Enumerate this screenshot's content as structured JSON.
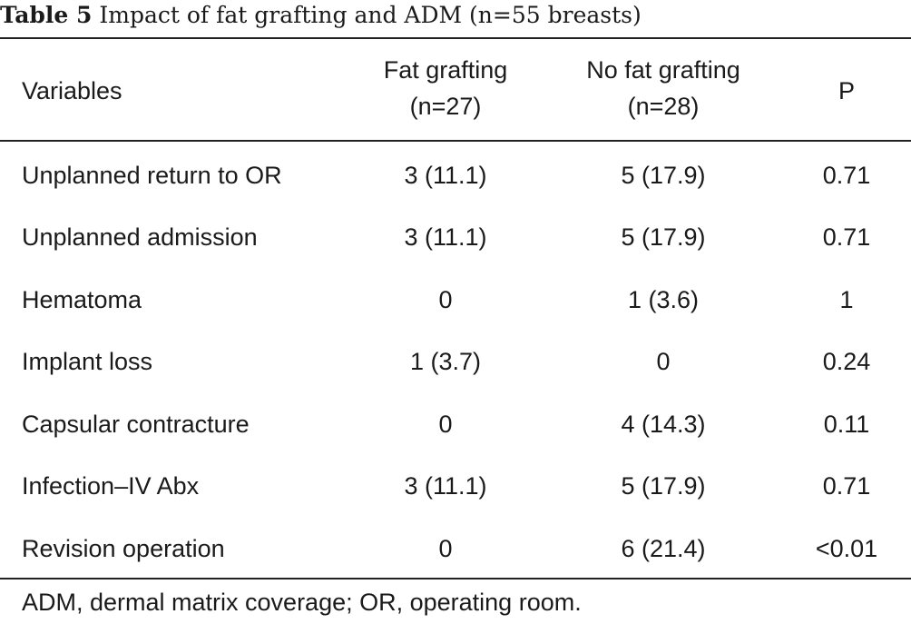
{
  "caption": {
    "label": "Table 5",
    "text": "Impact of fat grafting and ADM (n=55 breasts)"
  },
  "table": {
    "headers": {
      "variables": "Variables",
      "fat_grafting": {
        "line1": "Fat grafting",
        "line2": "(n=27)"
      },
      "no_fat_grafting": {
        "line1": "No fat grafting",
        "line2": "(n=28)"
      },
      "p": "P"
    },
    "rows": [
      {
        "variable": "Unplanned return to OR",
        "fat_grafting": "3 (11.1)",
        "no_fat_grafting": "5 (17.9)",
        "p": "0.71"
      },
      {
        "variable": "Unplanned admission",
        "fat_grafting": "3 (11.1)",
        "no_fat_grafting": "5 (17.9)",
        "p": "0.71"
      },
      {
        "variable": "Hematoma",
        "fat_grafting": "0",
        "no_fat_grafting": "1 (3.6)",
        "p": "1"
      },
      {
        "variable": "Implant loss",
        "fat_grafting": "1 (3.7)",
        "no_fat_grafting": "0",
        "p": "0.24"
      },
      {
        "variable": "Capsular contracture",
        "fat_grafting": "0",
        "no_fat_grafting": "4 (14.3)",
        "p": "0.11"
      },
      {
        "variable": "Infection–IV Abx",
        "fat_grafting": "3 (11.1)",
        "no_fat_grafting": "5 (17.9)",
        "p": "0.71"
      },
      {
        "variable": "Revision operation",
        "fat_grafting": "0",
        "no_fat_grafting": "6 (21.4)",
        "p": "<0.01"
      }
    ]
  },
  "footnote": "ADM, dermal matrix coverage; OR, operating room."
}
